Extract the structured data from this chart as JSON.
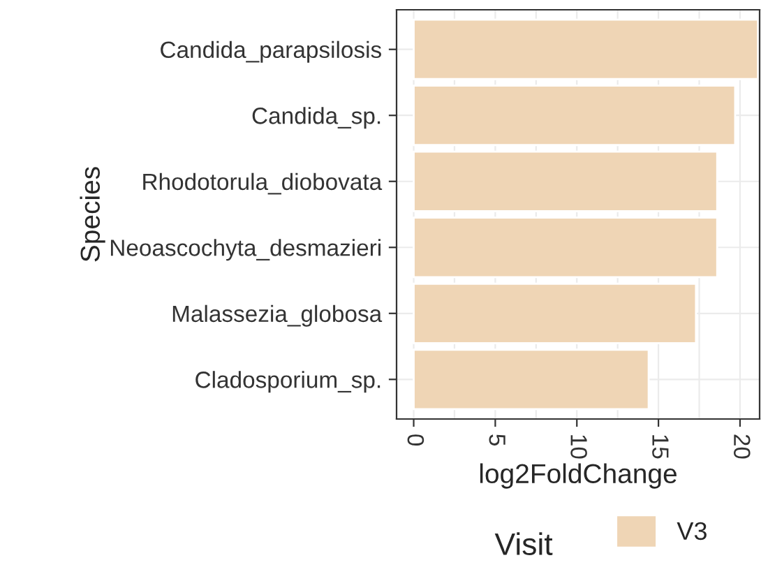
{
  "chart_data": {
    "type": "bar",
    "orientation": "horizontal",
    "ylabel": "Species",
    "xlabel": "log2FoldChange",
    "categories": [
      "Candida_parapsilosis",
      "Candida_sp.",
      "Rhodotorula_diobovata",
      "Neoascochyta_desmazieri",
      "Malassezia_globosa",
      "Cladosporium_sp."
    ],
    "series": [
      {
        "name": "V3",
        "color": "#efd5b5",
        "values": [
          21.1,
          19.7,
          18.6,
          18.6,
          17.3,
          14.4
        ]
      }
    ],
    "xlim": [
      -1.05,
      21.2
    ],
    "xticks": [
      0,
      5,
      10,
      15,
      20
    ],
    "grid": true,
    "legend": "bottom",
    "legend_title": "Visit"
  }
}
